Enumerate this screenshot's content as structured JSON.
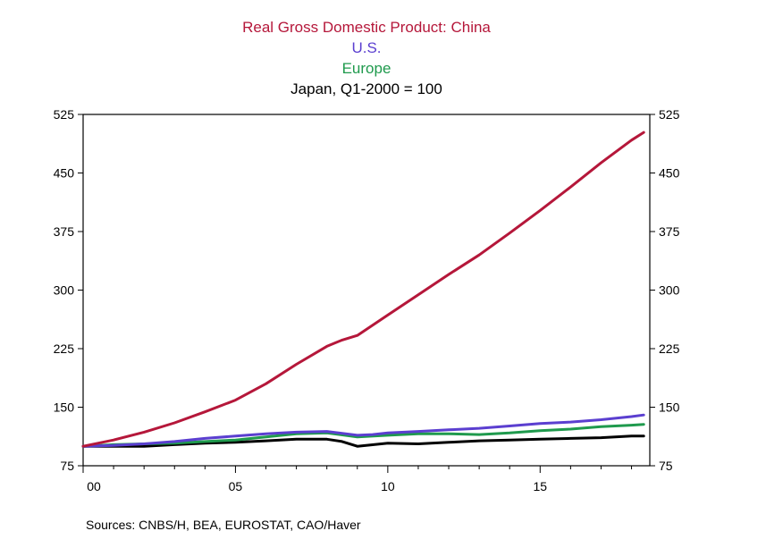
{
  "chart_data": {
    "type": "line",
    "title_lines": [
      {
        "text": "Real Gross Domestic Product: China",
        "color": "#b5173a"
      },
      {
        "text": "U.S.",
        "color": "#5b3fd0"
      },
      {
        "text": "Europe",
        "color": "#1f9a4d"
      },
      {
        "text": "Japan, Q1-2000 = 100",
        "color": "#000000"
      }
    ],
    "source": "Sources:  CNBS/H, BEA, EUROSTAT, CAO/Haver",
    "xlim": [
      2000,
      2018.6
    ],
    "ylim": [
      75,
      525
    ],
    "y_ticks": [
      75,
      150,
      225,
      300,
      375,
      450,
      525
    ],
    "x_ticks": [
      {
        "value": 2000,
        "label": "00"
      },
      {
        "value": 2005,
        "label": "05"
      },
      {
        "value": 2010,
        "label": "10"
      },
      {
        "value": 2015,
        "label": "15"
      }
    ],
    "dual_y_axis": true,
    "grid": false,
    "series": [
      {
        "name": "China",
        "color": "#b5173a",
        "x": [
          2000,
          2001,
          2002,
          2003,
          2004,
          2005,
          2006,
          2007,
          2008,
          2008.5,
          2009,
          2010,
          2011,
          2012,
          2013,
          2014,
          2015,
          2016,
          2017,
          2018,
          2018.4
        ],
        "y": [
          100,
          108,
          118,
          130,
          144,
          159,
          180,
          205,
          228,
          236,
          242,
          268,
          294,
          320,
          345,
          373,
          402,
          432,
          463,
          492,
          502
        ]
      },
      {
        "name": "U.S.",
        "color": "#5b3fd0",
        "x": [
          2000,
          2001,
          2002,
          2003,
          2004,
          2005,
          2006,
          2007,
          2008,
          2009,
          2009.5,
          2010,
          2011,
          2012,
          2013,
          2014,
          2015,
          2016,
          2017,
          2018,
          2018.4
        ],
        "y": [
          100,
          101,
          103,
          106,
          110,
          113,
          116,
          118,
          119,
          114,
          115,
          117,
          119,
          121,
          123,
          126,
          129,
          131,
          134,
          138,
          140
        ]
      },
      {
        "name": "Europe",
        "color": "#1f9a4d",
        "x": [
          2000,
          2001,
          2002,
          2003,
          2004,
          2005,
          2006,
          2007,
          2008,
          2009,
          2010,
          2011,
          2012,
          2013,
          2014,
          2015,
          2016,
          2017,
          2018,
          2018.4
        ],
        "y": [
          100,
          102,
          103,
          104,
          106,
          108,
          112,
          116,
          117,
          112,
          114,
          116,
          116,
          115,
          117,
          120,
          122,
          125,
          127,
          128
        ]
      },
      {
        "name": "Japan",
        "color": "#000000",
        "x": [
          2000,
          2001,
          2002,
          2003,
          2004,
          2005,
          2006,
          2007,
          2008,
          2008.5,
          2009,
          2010,
          2011,
          2012,
          2013,
          2014,
          2015,
          2016,
          2017,
          2018,
          2018.4
        ],
        "y": [
          100,
          100,
          100,
          102,
          104,
          105,
          107,
          109,
          109,
          106,
          100,
          104,
          103,
          105,
          107,
          108,
          109,
          110,
          111,
          113,
          113
        ]
      }
    ]
  }
}
